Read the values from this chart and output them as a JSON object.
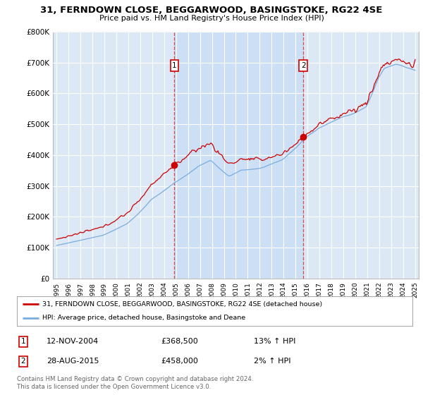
{
  "title": "31, FERNDOWN CLOSE, BEGGARWOOD, BASINGSTOKE, RG22 4SE",
  "subtitle": "Price paid vs. HM Land Registry's House Price Index (HPI)",
  "ylim": [
    0,
    800000
  ],
  "yticks": [
    0,
    100000,
    200000,
    300000,
    400000,
    500000,
    600000,
    700000,
    800000
  ],
  "ytick_labels": [
    "£0",
    "£100K",
    "£200K",
    "£300K",
    "£400K",
    "£500K",
    "£600K",
    "£700K",
    "£800K"
  ],
  "transaction1": {
    "date_num": 2004.87,
    "price": 368500,
    "label": "1",
    "date_str": "12-NOV-2004",
    "hpi_change": "13% ↑ HPI"
  },
  "transaction2": {
    "date_num": 2015.65,
    "price": 458000,
    "label": "2",
    "date_str": "28-AUG-2015",
    "hpi_change": "2% ↑ HPI"
  },
  "legend_line1": "31, FERNDOWN CLOSE, BEGGARWOOD, BASINGSTOKE, RG22 4SE (detached house)",
  "legend_line2": "HPI: Average price, detached house, Basingstoke and Deane",
  "footer": "Contains HM Land Registry data © Crown copyright and database right 2024.\nThis data is licensed under the Open Government Licence v3.0.",
  "background_color": "#ffffff",
  "plot_bg_color": "#dce8f5",
  "highlight_color": "#ccdff5",
  "grid_color": "#ffffff",
  "red_line_color": "#cc0000",
  "blue_line_color": "#7aaddd",
  "label_box_color": "#cc0000"
}
